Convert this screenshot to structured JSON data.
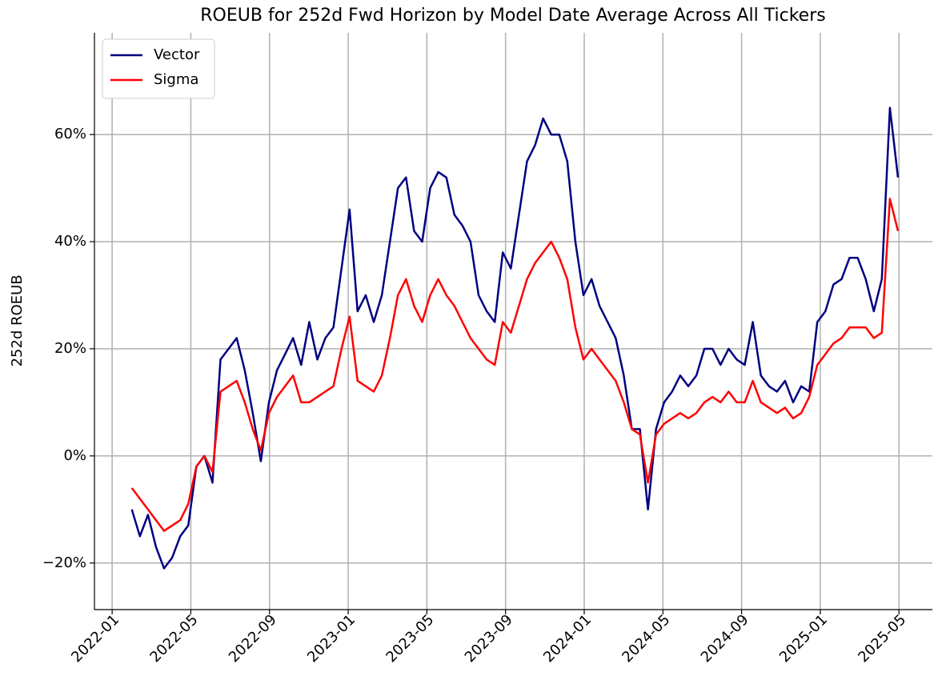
{
  "chart_data": {
    "type": "line",
    "title": "ROEUB for 252d Fwd Horizon by Model Date Average Across All Tickers",
    "ylabel": "252d ROEUB",
    "x": [
      1.0,
      1.41,
      1.82,
      2.23,
      2.64,
      3.05,
      3.46,
      3.87,
      4.28,
      4.69,
      5.1,
      5.51,
      5.92,
      6.33,
      6.74,
      7.15,
      7.56,
      7.97,
      8.38,
      8.79,
      9.2,
      9.61,
      10.02,
      10.43,
      10.84,
      11.25,
      11.66,
      12.07,
      12.48,
      12.89,
      13.3,
      13.71,
      14.12,
      14.53,
      14.94,
      15.35,
      15.76,
      16.17,
      16.58,
      16.99,
      17.4,
      17.81,
      18.22,
      18.63,
      19.04,
      19.45,
      19.86,
      20.27,
      20.68,
      21.09,
      21.5,
      21.91,
      22.32,
      22.73,
      23.14,
      23.55,
      23.96,
      24.37,
      24.78,
      25.19,
      25.6,
      26.01,
      26.42,
      26.83,
      27.24,
      27.65,
      28.06,
      28.47,
      28.88,
      29.29,
      29.7,
      30.11,
      30.52,
      30.93,
      31.34,
      31.75,
      32.16,
      32.57,
      32.98,
      33.39,
      33.8,
      34.21,
      34.62,
      35.03,
      35.44,
      35.85,
      36.26,
      36.67,
      37.08,
      37.49,
      37.9,
      38.31,
      38.72,
      39.13,
      39.54,
      39.95
    ],
    "series": [
      {
        "name": "Vector",
        "color": "#000080",
        "values": [
          -10,
          -15,
          -11,
          -17,
          -21,
          -19,
          -15,
          -13,
          -2,
          0,
          -5,
          18,
          20,
          22,
          16,
          8,
          -1,
          10,
          16,
          19,
          22,
          17,
          25,
          18,
          22,
          24,
          35,
          46,
          27,
          30,
          25,
          30,
          40,
          50,
          52,
          42,
          40,
          50,
          53,
          52,
          45,
          43,
          40,
          30,
          27,
          25,
          38,
          35,
          45,
          55,
          58,
          63,
          60,
          60,
          55,
          40,
          30,
          33,
          28,
          25,
          22,
          15,
          5,
          5,
          -10,
          5,
          10,
          12,
          15,
          13,
          15,
          20,
          20,
          17,
          20,
          18,
          17,
          25,
          15,
          13,
          12,
          14,
          10,
          13,
          12,
          25,
          27,
          32,
          33,
          37,
          37,
          33,
          27,
          33,
          65,
          52
        ]
      },
      {
        "name": "Sigma",
        "color": "#ff0000",
        "values": [
          -6,
          -8,
          -10,
          -12,
          -14,
          -13,
          -12,
          -9,
          -2,
          0,
          -3,
          12,
          13,
          14,
          10,
          5,
          1,
          8,
          11,
          13,
          15,
          10,
          10,
          11,
          12,
          13,
          20,
          26,
          14,
          13,
          12,
          15,
          22,
          30,
          33,
          28,
          25,
          30,
          33,
          30,
          28,
          25,
          22,
          20,
          18,
          17,
          25,
          23,
          28,
          33,
          36,
          38,
          40,
          37,
          33,
          24,
          18,
          20,
          18,
          16,
          14,
          10,
          5,
          4,
          -5,
          4,
          6,
          7,
          8,
          7,
          8,
          10,
          11,
          10,
          12,
          10,
          10,
          14,
          10,
          9,
          8,
          9,
          7,
          8,
          11,
          17,
          19,
          21,
          22,
          24,
          24,
          24,
          22,
          23,
          48,
          42
        ]
      }
    ],
    "xlim": [
      -0.9,
      41.7
    ],
    "xticks": [
      {
        "value": 0,
        "label": "2022-01"
      },
      {
        "value": 4,
        "label": "2022-05"
      },
      {
        "value": 8,
        "label": "2022-09"
      },
      {
        "value": 12,
        "label": "2023-01"
      },
      {
        "value": 16,
        "label": "2023-05"
      },
      {
        "value": 20,
        "label": "2023-09"
      },
      {
        "value": 24,
        "label": "2024-01"
      },
      {
        "value": 28,
        "label": "2024-05"
      },
      {
        "value": 32,
        "label": "2024-09"
      },
      {
        "value": 36,
        "label": "2025-01"
      },
      {
        "value": 40,
        "label": "2025-05"
      }
    ],
    "ylim": [
      -28.7,
      79
    ],
    "yticks": [
      {
        "value": -20,
        "label": "−20%"
      },
      {
        "value": 0,
        "label": "0%"
      },
      {
        "value": 20,
        "label": "20%"
      },
      {
        "value": 40,
        "label": "40%"
      },
      {
        "value": 60,
        "label": "60%"
      }
    ],
    "grid": true,
    "legend": "upper-left"
  }
}
